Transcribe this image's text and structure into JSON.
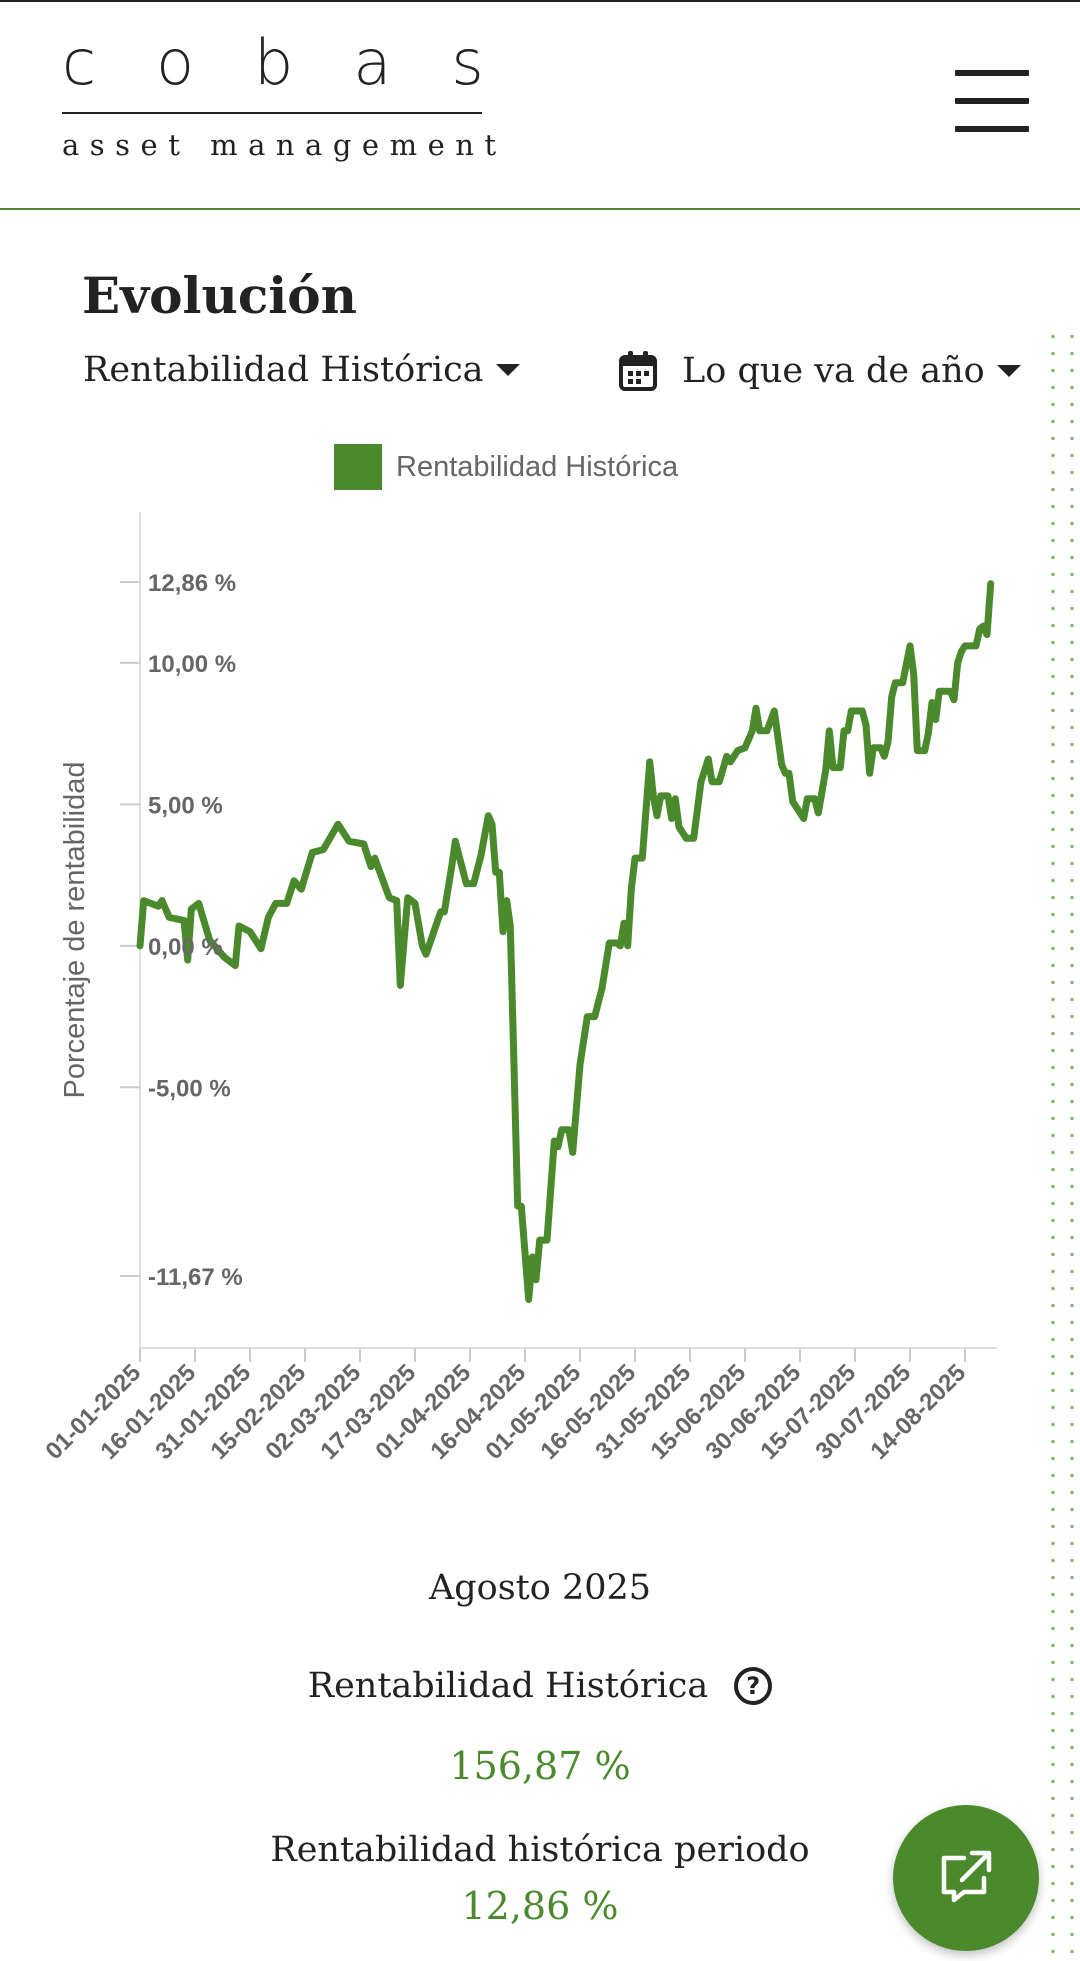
{
  "header": {
    "logo_word": "cobas",
    "logo_sub": "asset management",
    "menu_icon": "hamburger-icon"
  },
  "section": {
    "title": "Evolución",
    "metric_dropdown": "Rentabilidad Histórica",
    "period_dropdown": "Lo que va de año",
    "period_icon": "calendar-icon"
  },
  "colors": {
    "accent": "#4a8a2c",
    "text": "#222222",
    "axis_text": "#666666"
  },
  "chart_data": {
    "type": "line",
    "title": "",
    "ylabel": "Porcentaje de rentabilidad",
    "xlabel": "",
    "legend": [
      "Rentabilidad Histórica"
    ],
    "legend_position": "top-center",
    "grid": false,
    "yticks": [
      12.86,
      10,
      5,
      0,
      -5,
      -11.67
    ],
    "ytick_labels": [
      "12,86 %",
      "10,00 %",
      "5,00 %",
      "0,00 %",
      "-5,00 %",
      "-11,67 %"
    ],
    "ylim": [
      -14,
      15
    ],
    "x_tick_labels": [
      "01-01-2025",
      "16-01-2025",
      "31-01-2025",
      "15-02-2025",
      "02-03-2025",
      "17-03-2025",
      "01-04-2025",
      "16-04-2025",
      "01-05-2025",
      "16-05-2025",
      "31-05-2025",
      "15-06-2025",
      "30-06-2025",
      "15-07-2025",
      "30-07-2025",
      "14-08-2025"
    ],
    "series": [
      {
        "name": "Rentabilidad Histórica",
        "points": [
          [
            "2025-01-01",
            0.0
          ],
          [
            "2025-01-02",
            1.6
          ],
          [
            "2025-01-06",
            1.4
          ],
          [
            "2025-01-07",
            1.6
          ],
          [
            "2025-01-09",
            1.0
          ],
          [
            "2025-01-13",
            0.9
          ],
          [
            "2025-01-14",
            -0.5
          ],
          [
            "2025-01-15",
            1.3
          ],
          [
            "2025-01-17",
            1.5
          ],
          [
            "2025-01-20",
            0.2
          ],
          [
            "2025-01-24",
            -0.4
          ],
          [
            "2025-01-27",
            -0.7
          ],
          [
            "2025-01-28",
            0.7
          ],
          [
            "2025-01-31",
            0.5
          ],
          [
            "2025-02-03",
            -0.1
          ],
          [
            "2025-02-05",
            1.0
          ],
          [
            "2025-02-07",
            1.5
          ],
          [
            "2025-02-10",
            1.5
          ],
          [
            "2025-02-12",
            2.3
          ],
          [
            "2025-02-14",
            2.0
          ],
          [
            "2025-02-17",
            3.3
          ],
          [
            "2025-02-20",
            3.4
          ],
          [
            "2025-02-24",
            4.3
          ],
          [
            "2025-02-27",
            3.7
          ],
          [
            "2025-03-03",
            3.6
          ],
          [
            "2025-03-05",
            2.8
          ],
          [
            "2025-03-06",
            3.1
          ],
          [
            "2025-03-10",
            1.7
          ],
          [
            "2025-03-12",
            1.6
          ],
          [
            "2025-03-13",
            -1.4
          ],
          [
            "2025-03-15",
            1.7
          ],
          [
            "2025-03-17",
            1.5
          ],
          [
            "2025-03-19",
            0.0
          ],
          [
            "2025-03-20",
            -0.3
          ],
          [
            "2025-03-24",
            1.2
          ],
          [
            "2025-03-25",
            1.2
          ],
          [
            "2025-03-27",
            2.8
          ],
          [
            "2025-03-28",
            3.7
          ],
          [
            "2025-03-31",
            2.2
          ],
          [
            "2025-04-02",
            2.2
          ],
          [
            "2025-04-04",
            3.2
          ],
          [
            "2025-04-06",
            4.6
          ],
          [
            "2025-04-07",
            4.3
          ],
          [
            "2025-04-08",
            2.6
          ],
          [
            "2025-04-09",
            2.6
          ],
          [
            "2025-04-10",
            0.5
          ],
          [
            "2025-04-11",
            1.6
          ],
          [
            "2025-04-12",
            0.7
          ],
          [
            "2025-04-14",
            -9.2
          ],
          [
            "2025-04-15",
            -9.2
          ],
          [
            "2025-04-17",
            -12.5
          ],
          [
            "2025-04-18",
            -11.0
          ],
          [
            "2025-04-19",
            -11.8
          ],
          [
            "2025-04-20",
            -10.4
          ],
          [
            "2025-04-22",
            -10.4
          ],
          [
            "2025-04-24",
            -6.9
          ],
          [
            "2025-04-25",
            -7.1
          ],
          [
            "2025-04-26",
            -6.5
          ],
          [
            "2025-04-28",
            -6.5
          ],
          [
            "2025-04-29",
            -7.3
          ],
          [
            "2025-05-01",
            -4.2
          ],
          [
            "2025-05-03",
            -2.5
          ],
          [
            "2025-05-05",
            -2.5
          ],
          [
            "2025-05-07",
            -1.5
          ],
          [
            "2025-05-09",
            0.1
          ],
          [
            "2025-05-11",
            0.1
          ],
          [
            "2025-05-12",
            0.0
          ],
          [
            "2025-05-13",
            0.8
          ],
          [
            "2025-05-14",
            0.0
          ],
          [
            "2025-05-15",
            2.0
          ],
          [
            "2025-05-16",
            3.1
          ],
          [
            "2025-05-18",
            3.1
          ],
          [
            "2025-05-20",
            6.5
          ],
          [
            "2025-05-21",
            5.3
          ],
          [
            "2025-05-22",
            4.6
          ],
          [
            "2025-05-23",
            5.3
          ],
          [
            "2025-05-25",
            5.3
          ],
          [
            "2025-05-26",
            4.5
          ],
          [
            "2025-05-27",
            5.2
          ],
          [
            "2025-05-28",
            4.2
          ],
          [
            "2025-05-30",
            3.8
          ],
          [
            "2025-06-01",
            3.8
          ],
          [
            "2025-06-03",
            5.8
          ],
          [
            "2025-06-05",
            6.6
          ],
          [
            "2025-06-06",
            5.8
          ],
          [
            "2025-06-08",
            5.8
          ],
          [
            "2025-06-10",
            6.7
          ],
          [
            "2025-06-11",
            6.5
          ],
          [
            "2025-06-13",
            6.9
          ],
          [
            "2025-06-15",
            7.0
          ],
          [
            "2025-06-17",
            7.6
          ],
          [
            "2025-06-18",
            8.4
          ],
          [
            "2025-06-19",
            7.6
          ],
          [
            "2025-06-21",
            7.6
          ],
          [
            "2025-06-23",
            8.3
          ],
          [
            "2025-06-25",
            6.4
          ],
          [
            "2025-06-26",
            6.1
          ],
          [
            "2025-06-27",
            6.1
          ],
          [
            "2025-06-28",
            5.1
          ],
          [
            "2025-07-01",
            4.5
          ],
          [
            "2025-07-02",
            5.2
          ],
          [
            "2025-07-04",
            5.2
          ],
          [
            "2025-07-05",
            4.7
          ],
          [
            "2025-07-07",
            6.2
          ],
          [
            "2025-07-08",
            7.6
          ],
          [
            "2025-07-09",
            6.3
          ],
          [
            "2025-07-11",
            6.3
          ],
          [
            "2025-07-12",
            7.6
          ],
          [
            "2025-07-13",
            7.6
          ],
          [
            "2025-07-14",
            8.3
          ],
          [
            "2025-07-17",
            8.3
          ],
          [
            "2025-07-18",
            7.8
          ],
          [
            "2025-07-19",
            6.1
          ],
          [
            "2025-07-20",
            7.0
          ],
          [
            "2025-07-22",
            7.0
          ],
          [
            "2025-07-23",
            6.7
          ],
          [
            "2025-07-24",
            7.2
          ],
          [
            "2025-07-25",
            8.8
          ],
          [
            "2025-07-26",
            9.3
          ],
          [
            "2025-07-28",
            9.3
          ],
          [
            "2025-07-30",
            10.6
          ],
          [
            "2025-07-31",
            9.6
          ],
          [
            "2025-08-01",
            6.9
          ],
          [
            "2025-08-03",
            6.9
          ],
          [
            "2025-08-04",
            7.5
          ],
          [
            "2025-08-05",
            8.6
          ],
          [
            "2025-08-06",
            8.0
          ],
          [
            "2025-08-07",
            9.0
          ],
          [
            "2025-08-08",
            9.0
          ],
          [
            "2025-08-10",
            9.0
          ],
          [
            "2025-08-11",
            8.7
          ],
          [
            "2025-08-12",
            10.0
          ],
          [
            "2025-08-13",
            10.4
          ],
          [
            "2025-08-14",
            10.6
          ],
          [
            "2025-08-17",
            10.6
          ],
          [
            "2025-08-18",
            11.2
          ],
          [
            "2025-08-19",
            11.3
          ],
          [
            "2025-08-20",
            11.0
          ],
          [
            "2025-08-21",
            12.8
          ]
        ]
      }
    ]
  },
  "summary": {
    "month": "Agosto 2025",
    "metric_label": "Rentabilidad Histórica",
    "metric_help_icon": "question-circle-icon",
    "metric_value": "156,87 %",
    "period_label": "Rentabilidad histórica periodo",
    "period_value": "12,86 %"
  },
  "fab": {
    "icon": "external-share-icon"
  }
}
